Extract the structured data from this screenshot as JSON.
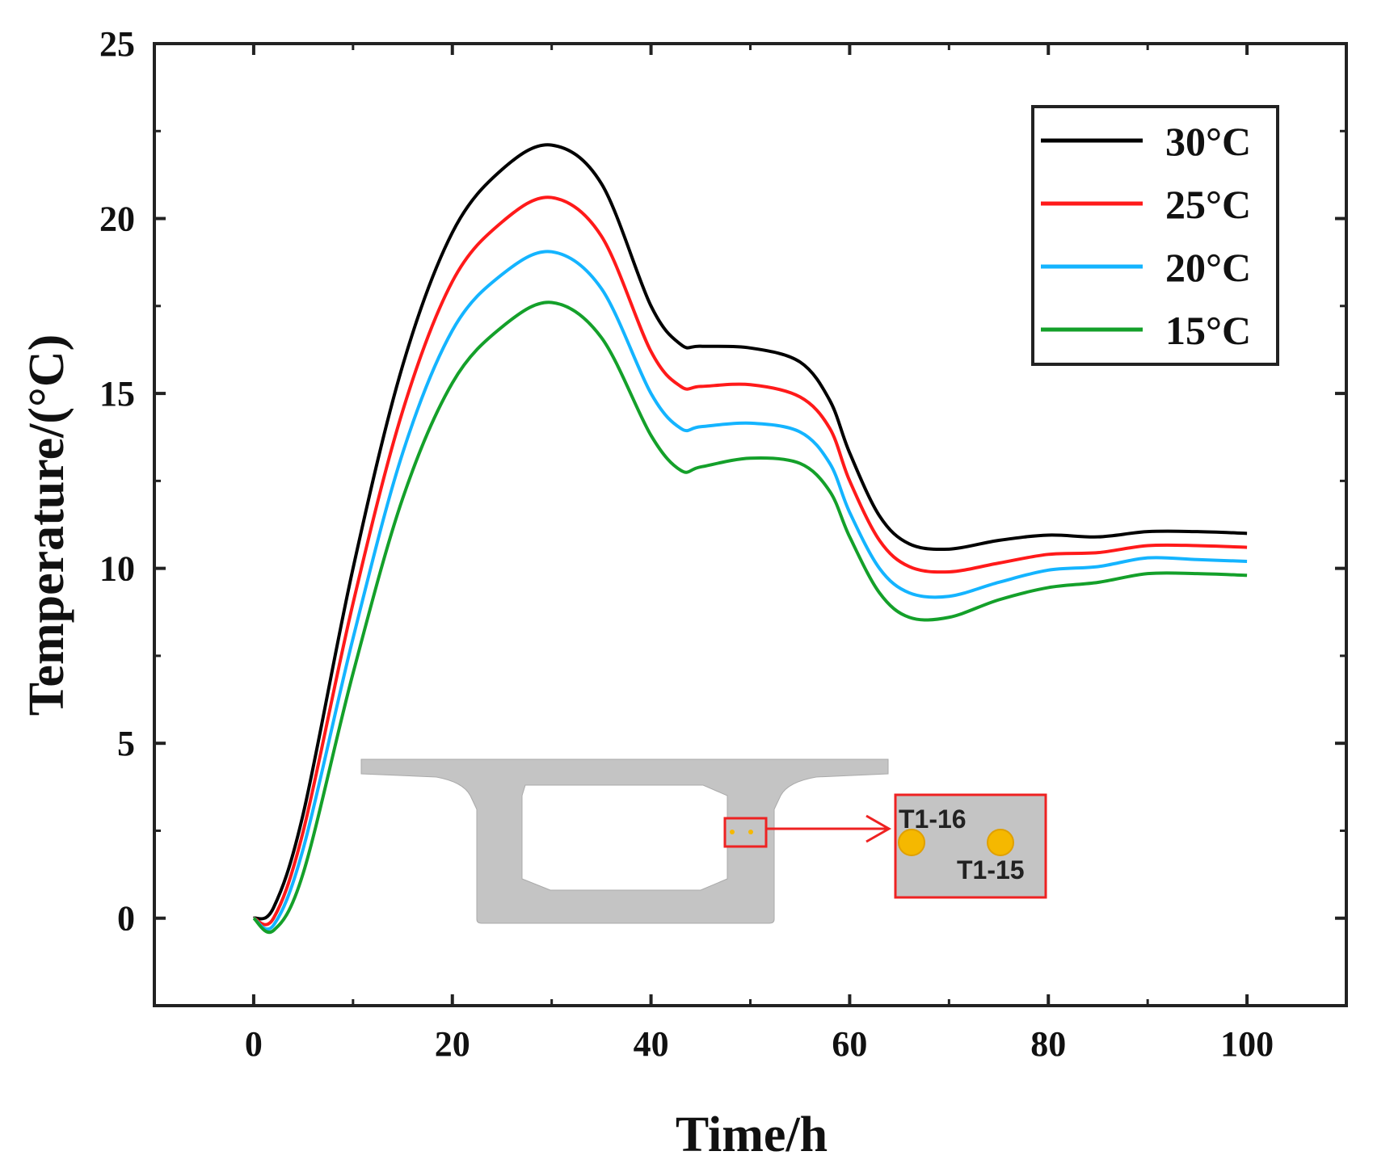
{
  "chart_data": {
    "type": "line",
    "xlabel": "Time/h",
    "ylabel": "Temperature/(°C)",
    "xlim": [
      -10,
      110
    ],
    "ylim": [
      -2.5,
      25
    ],
    "xticks": [
      0,
      20,
      40,
      60,
      80,
      100
    ],
    "yticks": [
      0,
      5,
      10,
      15,
      20,
      25
    ],
    "grid": false,
    "legend_position": "top-right",
    "x": [
      0,
      2,
      5,
      10,
      15,
      20,
      25,
      30,
      35,
      40,
      43,
      45,
      50,
      55,
      58,
      60,
      63,
      66,
      70,
      75,
      80,
      85,
      90,
      95,
      100
    ],
    "series": [
      {
        "name": "30°C",
        "color": "#000000",
        "values": [
          0,
          0.3,
          3,
          10,
          15.8,
          19.6,
          21.4,
          22.1,
          21,
          17.5,
          16.4,
          16.35,
          16.3,
          15.9,
          14.8,
          13.3,
          11.5,
          10.7,
          10.55,
          10.8,
          10.95,
          10.9,
          11.05,
          11.05,
          11.0
        ]
      },
      {
        "name": "25°C",
        "color": "#ff1a1a",
        "values": [
          0,
          0,
          2.5,
          9,
          14.5,
          18.2,
          19.9,
          20.6,
          19.5,
          16.2,
          15.2,
          15.2,
          15.25,
          14.9,
          14,
          12.5,
          10.8,
          10.05,
          9.9,
          10.15,
          10.4,
          10.45,
          10.65,
          10.65,
          10.6
        ]
      },
      {
        "name": "20°C",
        "color": "#14b4ff",
        "values": [
          0,
          -0.2,
          2,
          8,
          13.3,
          16.8,
          18.4,
          19.05,
          18,
          15,
          14.0,
          14.05,
          14.15,
          13.9,
          13,
          11.6,
          10,
          9.3,
          9.2,
          9.6,
          9.95,
          10.05,
          10.3,
          10.25,
          10.2
        ]
      },
      {
        "name": "15°C",
        "color": "#14a02a",
        "values": [
          0,
          -0.35,
          1.3,
          7,
          12,
          15.3,
          16.9,
          17.6,
          16.6,
          13.8,
          12.8,
          12.9,
          13.15,
          13.0,
          12.2,
          10.9,
          9.3,
          8.6,
          8.6,
          9.1,
          9.45,
          9.6,
          9.85,
          9.85,
          9.8
        ]
      }
    ],
    "inset": {
      "labels": [
        "T1-16",
        "T1-15"
      ],
      "point_color": "#f5b800",
      "highlight_color": "#ee2222"
    }
  }
}
